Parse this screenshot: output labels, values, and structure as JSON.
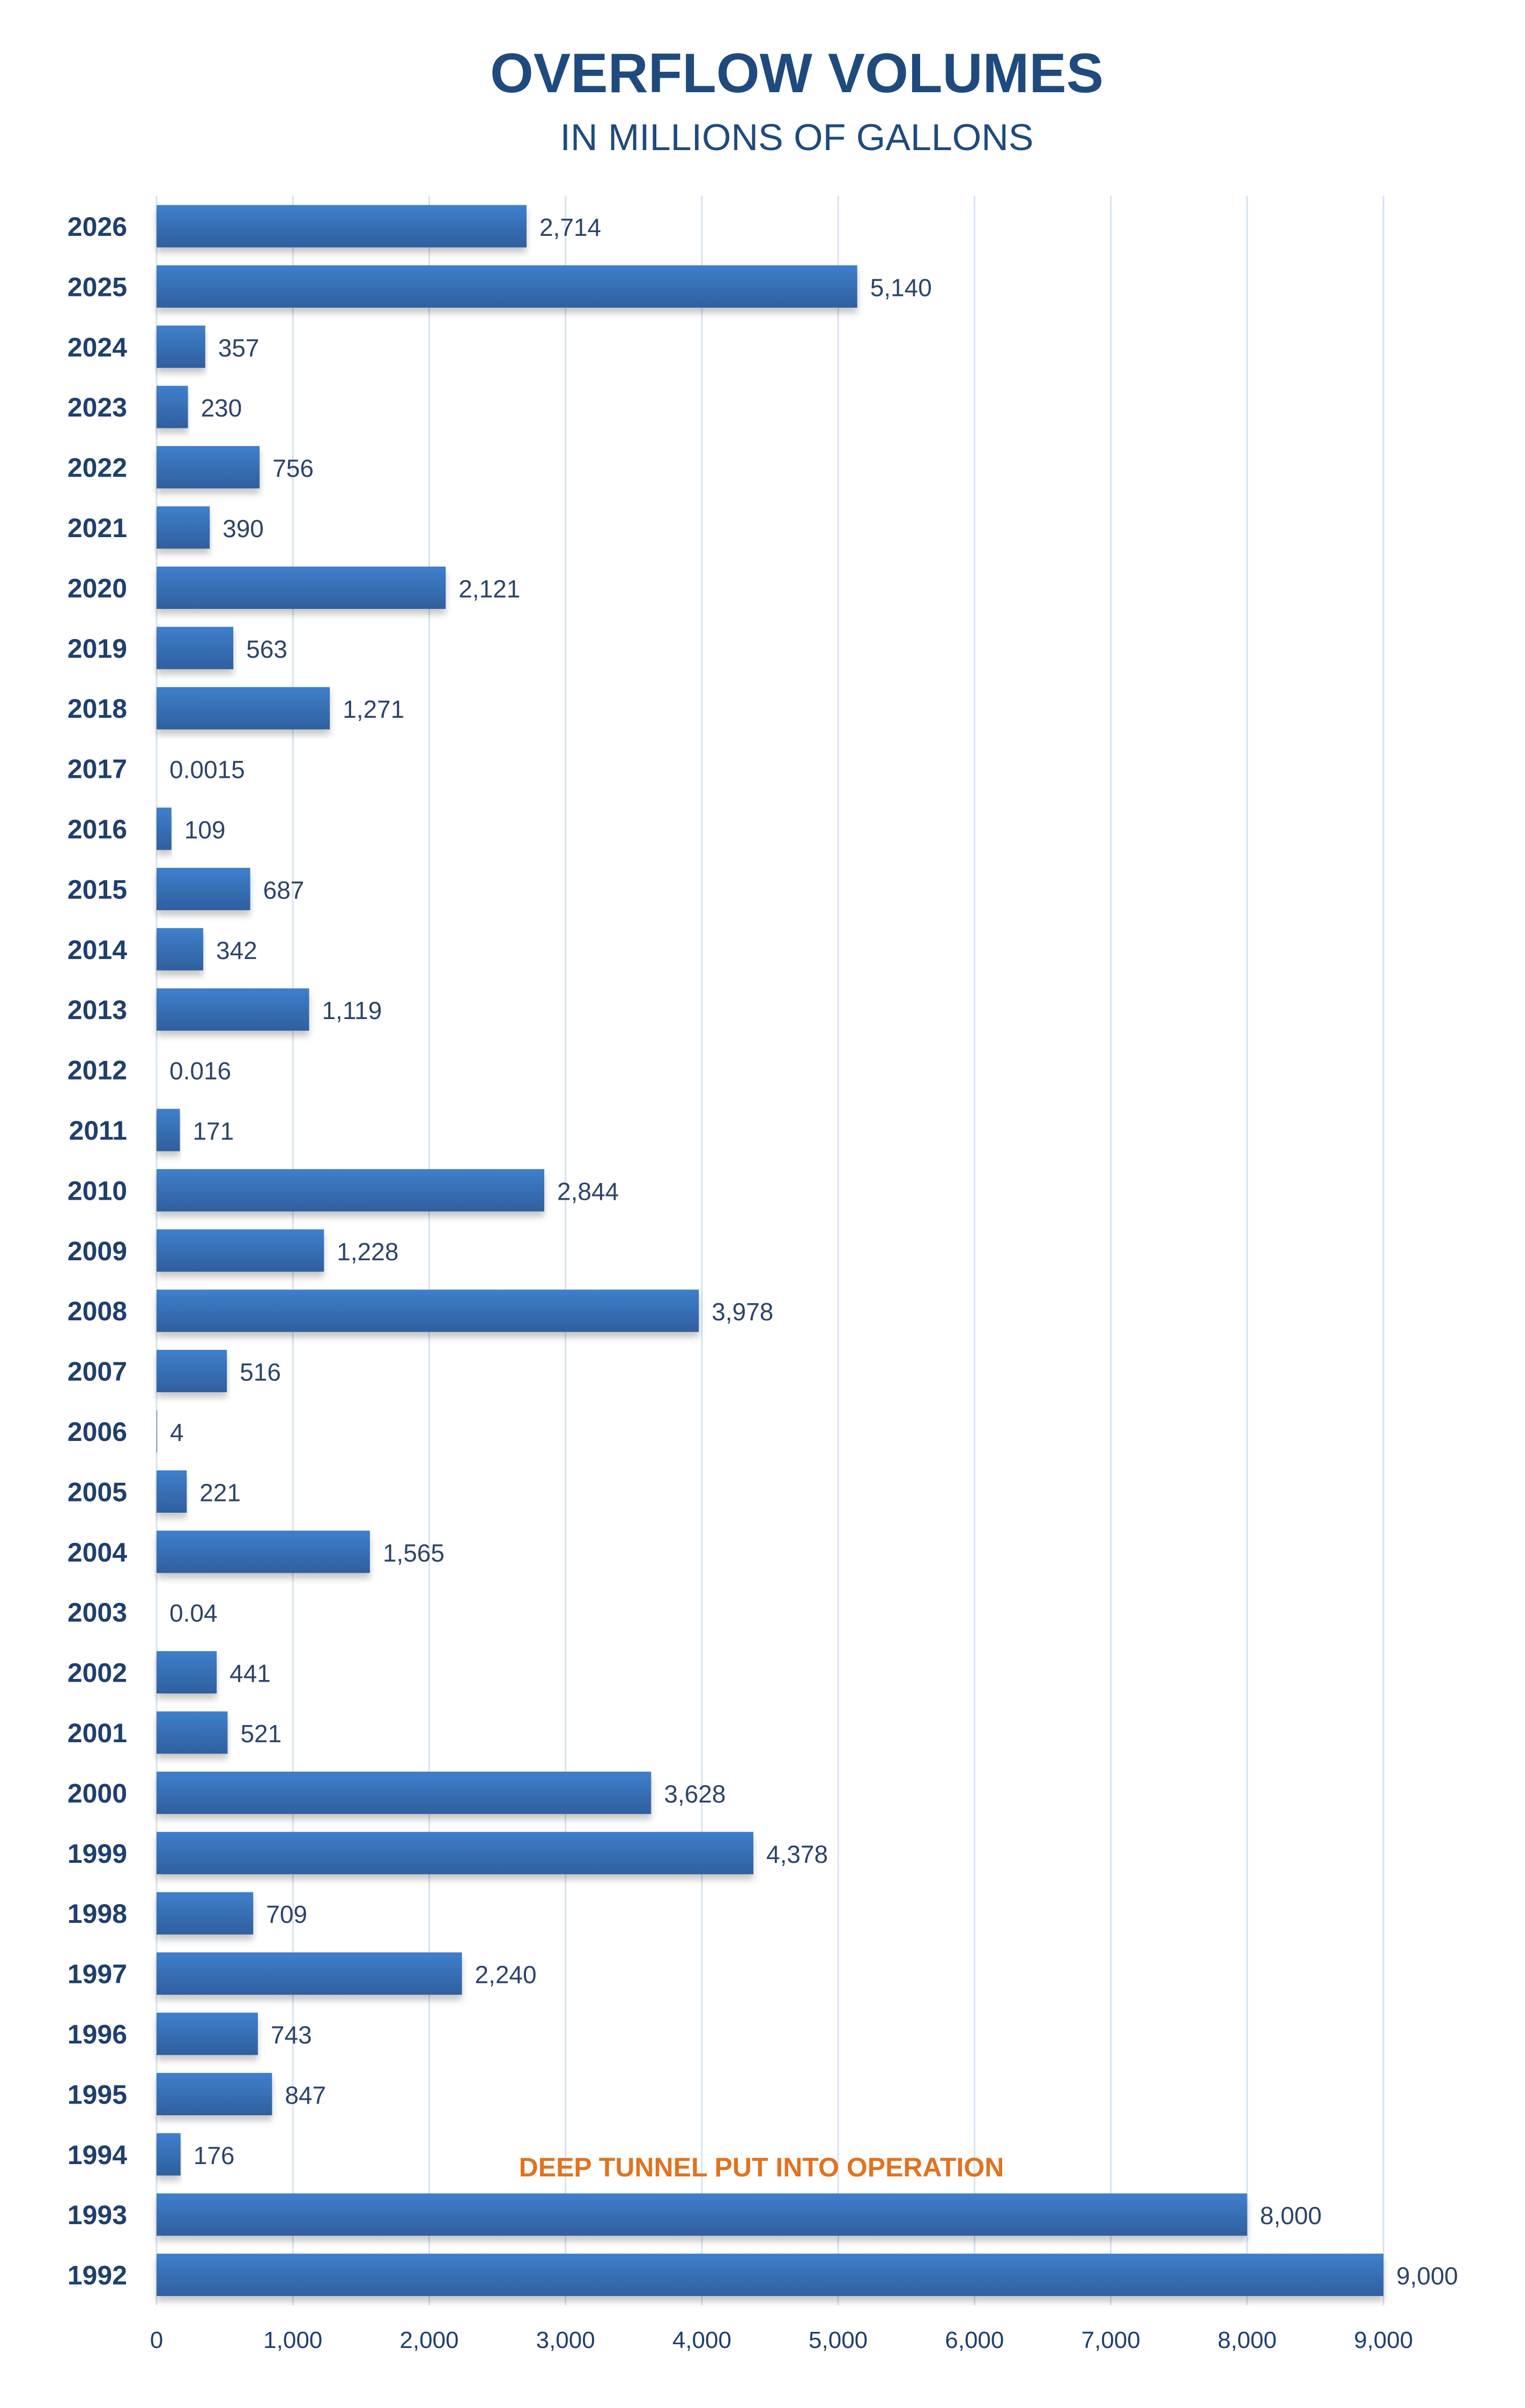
{
  "chart_data": {
    "type": "bar",
    "orientation": "horizontal",
    "title": "OVERFLOW VOLUMES",
    "subtitle": "IN MILLIONS OF GALLONS",
    "xlabel": "",
    "ylabel": "",
    "xlim": [
      0,
      9000
    ],
    "xticks": [
      "0",
      "1,000",
      "2,000",
      "3,000",
      "4,000",
      "5,000",
      "6,000",
      "7,000",
      "8,000",
      "9,000"
    ],
    "grid": "vertical",
    "categories": [
      "2026",
      "2025",
      "2024",
      "2023",
      "2022",
      "2021",
      "2020",
      "2019",
      "2018",
      "2017",
      "2016",
      "2015",
      "2014",
      "2013",
      "2012",
      "2011",
      "2010",
      "2009",
      "2008",
      "2007",
      "2006",
      "2005",
      "2004",
      "2003",
      "2002",
      "2001",
      "2000",
      "1999",
      "1998",
      "1997",
      "1996",
      "1995",
      "1994",
      "1993",
      "1992"
    ],
    "values": [
      2714,
      5140,
      357,
      230,
      756,
      390,
      2121,
      563,
      1271,
      0.0015,
      109,
      687,
      342,
      1119,
      0.016,
      171,
      2844,
      1228,
      3978,
      516,
      4,
      221,
      1565,
      0.04,
      441,
      521,
      3628,
      4378,
      709,
      2240,
      743,
      847,
      176,
      8000,
      9000
    ],
    "value_labels": [
      "2,714",
      "5,140",
      "357",
      "230",
      "756",
      "390",
      "2,121",
      "563",
      "1,271",
      "0.0015",
      "109",
      "687",
      "342",
      "1,119",
      "0.016",
      "171",
      "2,844",
      "1,228",
      "3,978",
      "516",
      "4",
      "221",
      "1,565",
      "0.04",
      "441",
      "521",
      "3,628",
      "4,378",
      "709",
      "2,240",
      "743",
      "847",
      "176",
      "8,000",
      "9,000"
    ],
    "annotation": {
      "text": "DEEP TUNNEL PUT INTO OPERATION",
      "between": [
        "1994",
        "1993"
      ],
      "color": "#e07320"
    },
    "colors": {
      "bar": "#3a74bf",
      "bar_dark": "#2f5d99",
      "text": "#1f4a7e",
      "grid": "#d6e3f1"
    }
  }
}
